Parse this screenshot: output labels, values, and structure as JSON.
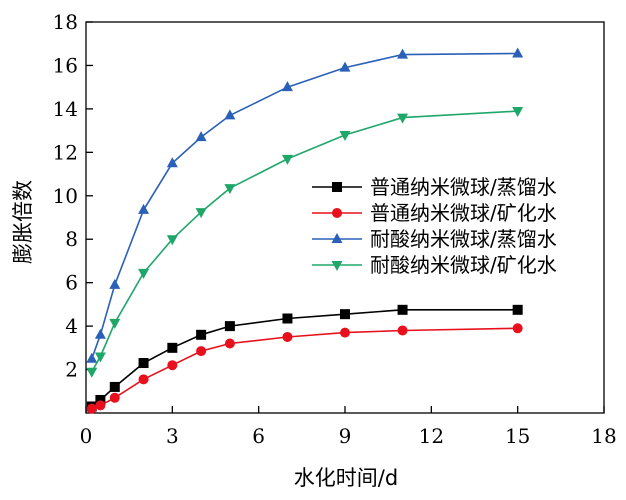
{
  "chart_data": {
    "type": "line",
    "title": "",
    "xlabel": "水化时间/d",
    "ylabel": "膨胀倍数",
    "xlim": [
      0,
      18
    ],
    "ylim": [
      0,
      18
    ],
    "xticks": [
      0,
      3,
      6,
      9,
      12,
      15,
      18
    ],
    "yticks": [
      2,
      4,
      6,
      8,
      10,
      12,
      14,
      16,
      18
    ],
    "grid": false,
    "legend_position": "right",
    "series": [
      {
        "name": "普通纳米微球/蒸馏水",
        "color": "#000000",
        "marker": "square",
        "points": [
          [
            0.2,
            0.3
          ],
          [
            0.5,
            0.6
          ],
          [
            1,
            1.2
          ],
          [
            2,
            2.3
          ],
          [
            3,
            3.0
          ],
          [
            4,
            3.6
          ],
          [
            5,
            4.0
          ],
          [
            7,
            4.35
          ],
          [
            9,
            4.55
          ],
          [
            11,
            4.75
          ],
          [
            15,
            4.75
          ]
        ]
      },
      {
        "name": "普通纳米微球/矿化水",
        "color": "#e8101c",
        "marker": "circle",
        "points": [
          [
            0.2,
            0.2
          ],
          [
            0.5,
            0.35
          ],
          [
            1,
            0.7
          ],
          [
            2,
            1.55
          ],
          [
            3,
            2.2
          ],
          [
            4,
            2.85
          ],
          [
            5,
            3.2
          ],
          [
            7,
            3.5
          ],
          [
            9,
            3.7
          ],
          [
            11,
            3.8
          ],
          [
            15,
            3.9
          ]
        ]
      },
      {
        "name": "耐酸纳米微球/蒸馏水",
        "color": "#2a60b8",
        "marker": "triangle-up",
        "points": [
          [
            0.2,
            2.5
          ],
          [
            0.5,
            3.6
          ],
          [
            1,
            5.9
          ],
          [
            2,
            9.35
          ],
          [
            3,
            11.5
          ],
          [
            4,
            12.7
          ],
          [
            5,
            13.7
          ],
          [
            7,
            15.0
          ],
          [
            9,
            15.9
          ],
          [
            11,
            16.5
          ],
          [
            15,
            16.55
          ]
        ]
      },
      {
        "name": "耐酸纳米微球/矿化水",
        "color": "#1fa76a",
        "marker": "triangle-down",
        "points": [
          [
            0.2,
            1.9
          ],
          [
            0.5,
            2.6
          ],
          [
            1,
            4.15
          ],
          [
            2,
            6.45
          ],
          [
            3,
            8.0
          ],
          [
            4,
            9.25
          ],
          [
            5,
            10.35
          ],
          [
            7,
            11.7
          ],
          [
            9,
            12.8
          ],
          [
            11,
            13.6
          ],
          [
            15,
            13.9
          ]
        ]
      }
    ]
  }
}
